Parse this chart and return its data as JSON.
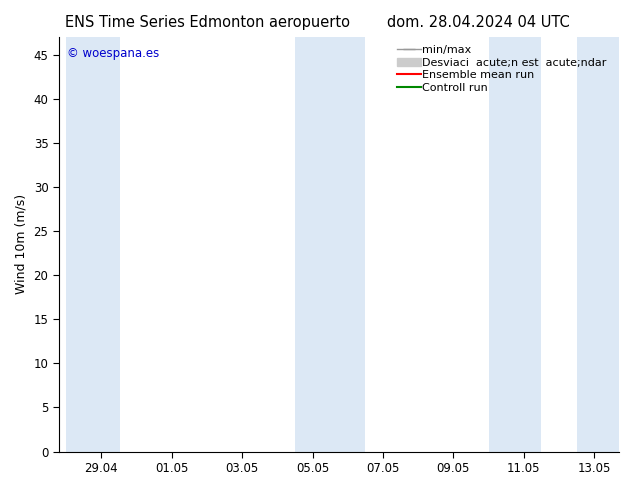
{
  "title_left": "ENS Time Series Edmonton aeropuerto",
  "title_right": "dom. 28.04.2024 04 UTC",
  "ylabel": "Wind 10m (m/s)",
  "ylim": [
    0,
    47
  ],
  "yticks": [
    0,
    5,
    10,
    15,
    20,
    25,
    30,
    35,
    40,
    45
  ],
  "xtick_labels": [
    "29.04",
    "01.05",
    "03.05",
    "05.05",
    "07.05",
    "09.05",
    "11.05",
    "13.05"
  ],
  "xtick_positions": [
    1,
    3,
    5,
    7,
    9,
    11,
    13,
    15
  ],
  "xlim": [
    -0.2,
    15.7
  ],
  "bg_color": "#ffffff",
  "plot_bg_color": "#ffffff",
  "shaded_band_color": "#dce8f5",
  "watermark_text": "© woespana.es",
  "watermark_color": "#0000cc",
  "legend_label_minmax": "min/max",
  "legend_label_std": "Desviaci  acute;n est  acute;ndar",
  "legend_label_ensemble": "Ensemble mean run",
  "legend_label_control": "Controll run",
  "legend_color_minmax": "#999999",
  "legend_color_std": "#cccccc",
  "legend_color_ensemble": "#ff0000",
  "legend_color_control": "#008800",
  "font_size_title": 10.5,
  "font_size_axis_label": 9,
  "font_size_ticks": 8.5,
  "font_size_legend": 8,
  "font_size_watermark": 8.5,
  "shaded_bands": [
    [
      0.0,
      1.55
    ],
    [
      6.5,
      8.5
    ],
    [
      12.0,
      13.5
    ],
    [
      14.5,
      15.7
    ]
  ]
}
